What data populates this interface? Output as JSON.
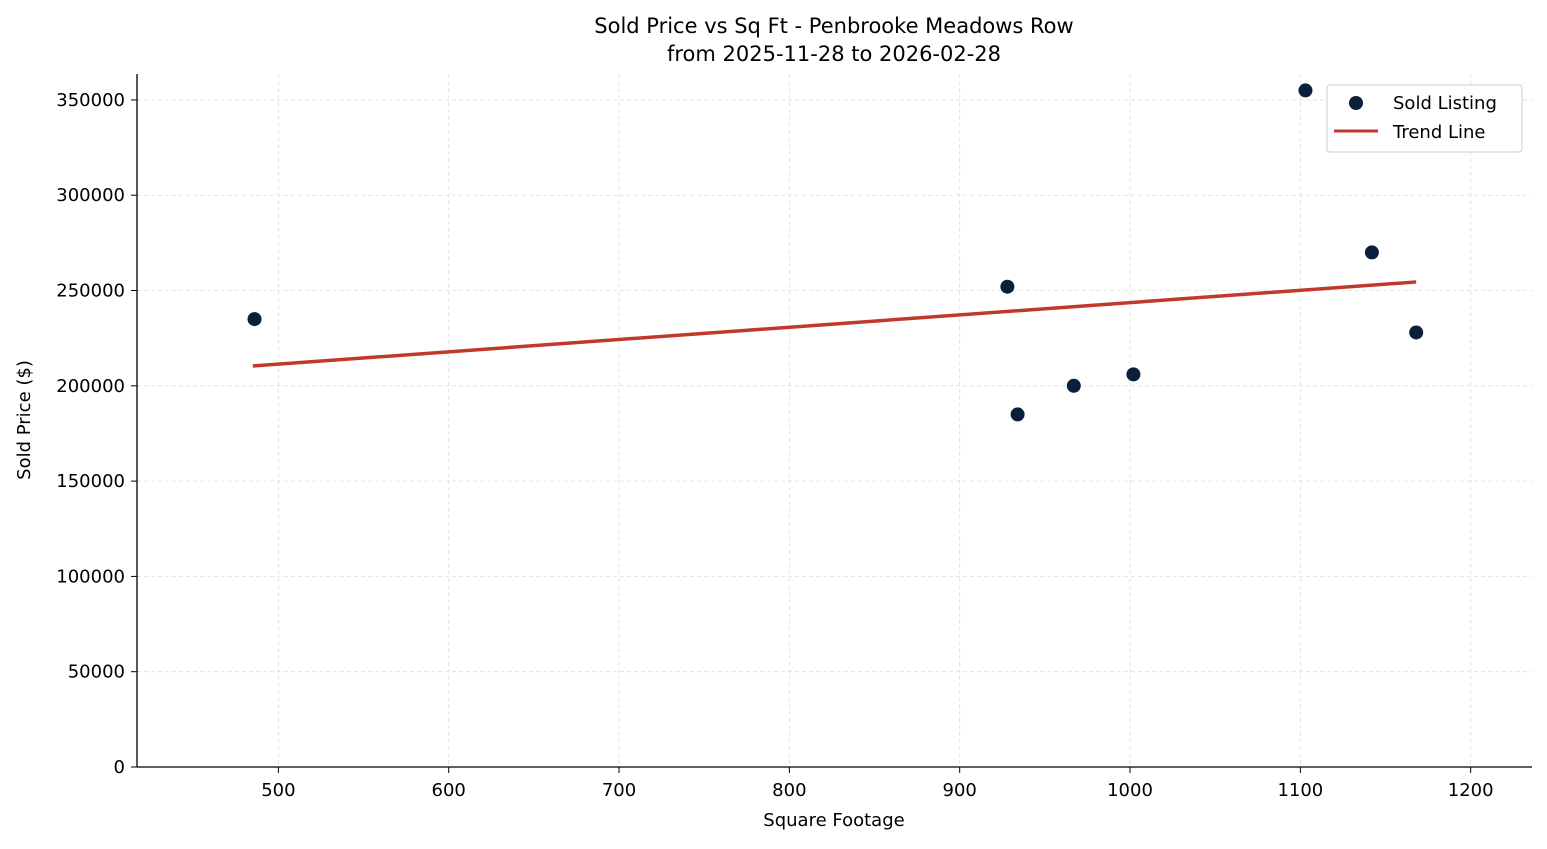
{
  "chart_data": {
    "type": "scatter",
    "title": "Sold Price vs Sq Ft - Penbrooke Meadows Row",
    "subtitle": "from 2025-11-28 to 2026-02-28",
    "xlabel": "Square Footage",
    "ylabel": "Sold Price ($)",
    "xlim": [
      417,
      1236
    ],
    "ylim": [
      0,
      363600
    ],
    "xticks": [
      500,
      600,
      700,
      800,
      900,
      1000,
      1100,
      1200
    ],
    "yticks": [
      0,
      50000,
      100000,
      150000,
      200000,
      250000,
      300000,
      350000
    ],
    "grid": true,
    "legend_position": "top-right",
    "series": [
      {
        "name": "Sold Listing",
        "type": "scatter",
        "color": "#0b1e3a",
        "points": [
          {
            "x": 486,
            "y": 235000
          },
          {
            "x": 928,
            "y": 252000
          },
          {
            "x": 934,
            "y": 185000
          },
          {
            "x": 967,
            "y": 200000
          },
          {
            "x": 1002,
            "y": 206000
          },
          {
            "x": 1103,
            "y": 355000
          },
          {
            "x": 1142,
            "y": 270000
          },
          {
            "x": 1168,
            "y": 228000
          }
        ]
      },
      {
        "name": "Trend Line",
        "type": "line",
        "color": "#c0392b",
        "points": [
          {
            "x": 485,
            "y": 210400
          },
          {
            "x": 1168,
            "y": 254500
          }
        ]
      }
    ]
  }
}
